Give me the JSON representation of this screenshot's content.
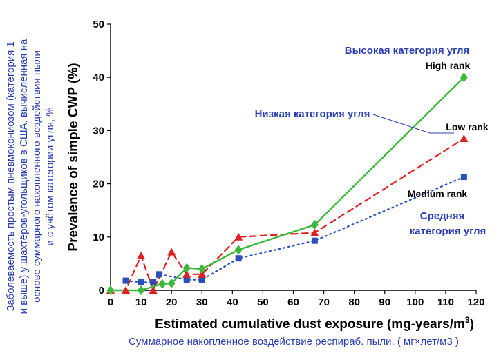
{
  "chart_data": {
    "type": "line",
    "xlabel": "Estimated cumulative dust exposure (mg-years/m",
    "xlabel_sup": "3",
    "xlabel_end": ")",
    "ylabel": "Prevalence of simple CWP (%)",
    "xlim": [
      0,
      120
    ],
    "ylim": [
      0,
      50
    ],
    "x_ticks": [
      "0",
      "10",
      "20",
      "30",
      "40",
      "50",
      "60",
      "70",
      "80",
      "90",
      "100",
      "110",
      "120"
    ],
    "y_ticks": [
      "0",
      "10",
      "20",
      "30",
      "40",
      "50"
    ],
    "grid": false,
    "series": [
      {
        "name": "High rank",
        "color": "#3cb83c",
        "line_style": "solid",
        "marker": "diamond",
        "x": [
          0,
          10,
          17,
          20,
          25,
          30,
          42,
          67,
          116
        ],
        "y": [
          0,
          0,
          1.2,
          1.3,
          4.2,
          4.0,
          7.6,
          12.3,
          40.0
        ]
      },
      {
        "name": "Low rank",
        "color": "#e02020",
        "line_style": "dashed",
        "marker": "triangle",
        "x": [
          0,
          5,
          10,
          14,
          20,
          25,
          30,
          42,
          67,
          116
        ],
        "y": [
          0,
          0,
          6.5,
          0,
          7.2,
          3.0,
          3.0,
          10.0,
          10.8,
          28.5
        ]
      },
      {
        "name": "Medium rank",
        "color": "#2850b8",
        "line_style": "dotted",
        "marker": "square",
        "x": [
          5,
          10,
          14,
          16,
          25,
          30,
          42,
          67,
          116
        ],
        "y": [
          1.8,
          1.5,
          1.5,
          3.0,
          2.0,
          2.0,
          6.0,
          9.3,
          21.3
        ]
      }
    ],
    "annotations_en": [
      "High rank",
      "Low rank",
      "Medium rank"
    ],
    "annotations_ru": {
      "high": "Высокая категория угля",
      "low": "Низкая категория угля",
      "medium_line1": "Средняя",
      "medium_line2": "категория угля"
    },
    "ru_xlabel": "Суммарное накопленное воздействие  респираб.  пыли, ( мг×лет/м3 )",
    "ru_ylabel_lines": [
      "Заболеваемость простым пневмокониозом (категория 1",
      "и выше) у шахтёров-угольщиков в США, вычисленная на",
      "основе суммарного накопленного воздействия пыли",
      "и с учётом категории угля, %"
    ]
  }
}
